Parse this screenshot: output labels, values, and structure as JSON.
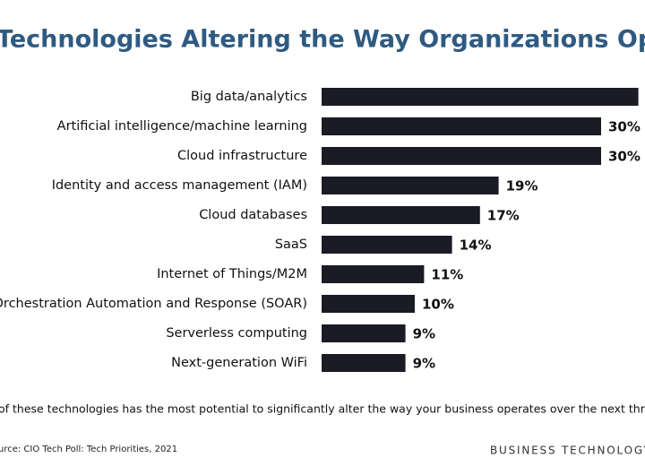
{
  "chart_data": {
    "type": "bar",
    "orientation": "horizontal",
    "title": "Technologies Altering the Way Organizations Opera",
    "categories": [
      "Big data/analytics",
      "Artificial intelligence/machine learning",
      "Cloud infrastructure",
      "Identity and access management (IAM)",
      "Cloud databases",
      "SaaS",
      "Internet of Things/M2M",
      "y Orchestration Automation and Response (SOAR)",
      "Serverless computing",
      "Next-generation WiFi"
    ],
    "values": [
      34,
      30,
      30,
      19,
      17,
      14,
      11,
      10,
      9,
      9
    ],
    "value_labels": [
      null,
      "30%",
      "30%",
      "19%",
      "17%",
      "14%",
      "11%",
      "10%",
      "9%",
      "9%"
    ],
    "color": "#1b1b26",
    "footnote": "of these technologies has the most potential to significantly alter the way your business operates over the next three to five y",
    "source": "urce: CIO Tech Poll: Tech Priorities, 2021",
    "brand": "BUSINESS TECHNOLOGY LEA"
  }
}
